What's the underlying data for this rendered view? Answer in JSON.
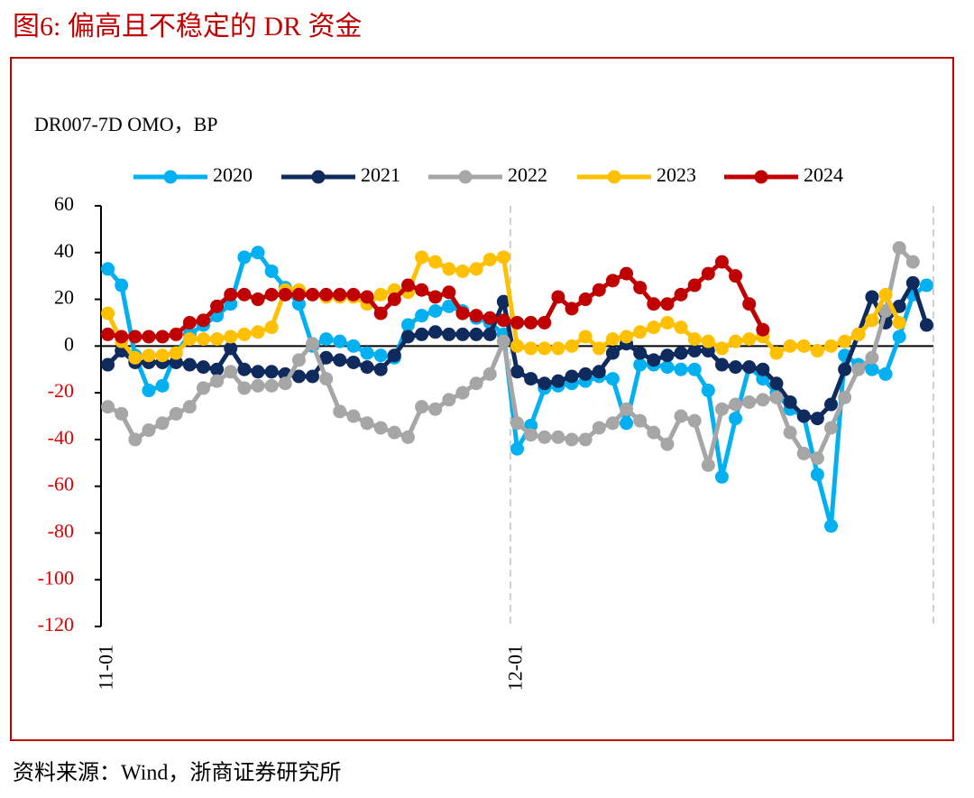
{
  "chart_data": {
    "type": "line",
    "title": "图6:   偏高且不稳定的 DR 资金",
    "y_label": "DR007-7D OMO，BP",
    "source": "资料来源：Wind，浙商证券研究所",
    "categories": [
      "11-01",
      null,
      null,
      null,
      null,
      null,
      null,
      null,
      null,
      null,
      null,
      null,
      null,
      null,
      null,
      null,
      null,
      null,
      null,
      null,
      null,
      null,
      null,
      null,
      null,
      null,
      null,
      null,
      null,
      null,
      "12-01",
      null,
      null,
      null,
      null,
      null,
      null,
      null,
      null,
      null,
      null,
      null,
      null,
      null,
      null,
      null,
      null,
      null,
      null,
      null,
      null,
      null,
      null,
      null,
      null,
      null,
      null,
      null,
      null,
      null,
      null
    ],
    "ylim": [
      -120,
      60
    ],
    "yticks": [
      60,
      40,
      20,
      0,
      -20,
      -40,
      -60,
      -80,
      -100,
      -120
    ],
    "negative_tick_color": "#e00000",
    "series": [
      {
        "name": "2020",
        "color": "#00b0f0",
        "values": [
          33,
          26,
          -4,
          -19,
          -17,
          -3,
          5,
          9,
          13,
          18,
          38,
          40,
          32,
          25,
          18,
          0,
          3,
          2,
          0,
          -3,
          -4,
          -5,
          9,
          13,
          15,
          17,
          15,
          12,
          10,
          5,
          -44,
          -34,
          -18,
          -17,
          -16,
          -15,
          -13,
          -14,
          -33,
          -8,
          -8,
          -9,
          -10,
          -10,
          -19,
          -56,
          -31,
          -9,
          -14,
          -20,
          -27,
          -30,
          -55,
          -77,
          -4,
          -8,
          -10,
          -12,
          4,
          22,
          26
        ]
      },
      {
        "name": "2021",
        "color": "#0f2a5c",
        "values": [
          -8,
          -2,
          -7,
          -7,
          -7,
          -7,
          -8,
          -9,
          -10,
          -1,
          -10,
          -11,
          -11,
          -12,
          -13,
          -13,
          -5,
          -6,
          -7,
          -9,
          -10,
          -4,
          4,
          5,
          6,
          5,
          5,
          5,
          5,
          19,
          -11,
          -14,
          -16,
          -15,
          -13,
          -12,
          -11,
          -3,
          1,
          -3,
          -6,
          -4,
          -3,
          -2,
          -2,
          -8,
          -9,
          -9,
          -10,
          -16,
          -24,
          -30,
          -31,
          -25,
          -10,
          5,
          21,
          10,
          17,
          27,
          9
        ]
      },
      {
        "name": "2022",
        "color": "#a6a6a6",
        "values": [
          -26,
          -29,
          -40,
          -36,
          -33,
          -29,
          -26,
          -18,
          -15,
          -11,
          -18,
          -17,
          -17,
          -16,
          -6,
          1,
          -14,
          -28,
          -30,
          -33,
          -35,
          -37,
          -39,
          -26,
          -27,
          -23,
          -20,
          -16,
          -12,
          2,
          -33,
          -38,
          -39,
          -39,
          -40,
          -40,
          -35,
          -33,
          -27,
          -32,
          -37,
          -42,
          -30,
          -32,
          -51,
          -27,
          -25,
          -24,
          -23,
          -22,
          -37,
          -46,
          -48,
          -35,
          -22,
          -10,
          -5,
          15,
          42,
          36,
          null
        ]
      },
      {
        "name": "2023",
        "color": "#ffc000",
        "values": [
          14,
          2,
          -5,
          -4,
          -4,
          -3,
          3,
          3,
          3,
          4,
          5,
          6,
          8,
          24,
          24,
          22,
          21,
          21,
          21,
          18,
          22,
          24,
          23,
          38,
          36,
          33,
          32,
          33,
          37,
          38,
          0,
          -1,
          -1,
          -1,
          0,
          4,
          -1,
          3,
          4,
          6,
          8,
          10,
          8,
          3,
          2,
          -1,
          2,
          3,
          4,
          -3,
          0,
          0,
          -2,
          0,
          2,
          5,
          11,
          22,
          10,
          null,
          null
        ]
      },
      {
        "name": "2024",
        "color": "#c00000",
        "values": [
          5,
          4,
          4,
          4,
          4,
          5,
          10,
          11,
          17,
          22,
          22,
          20,
          22,
          22,
          22,
          22,
          22,
          22,
          22,
          21,
          14,
          20,
          26,
          24,
          21,
          23,
          14,
          13,
          12,
          11,
          10,
          10,
          10,
          21,
          16,
          20,
          24,
          28,
          31,
          25,
          18,
          18,
          22,
          26,
          31,
          36,
          30,
          18,
          7,
          null,
          null,
          null,
          null,
          null,
          null,
          null,
          null,
          null,
          null,
          null,
          null
        ]
      }
    ]
  }
}
